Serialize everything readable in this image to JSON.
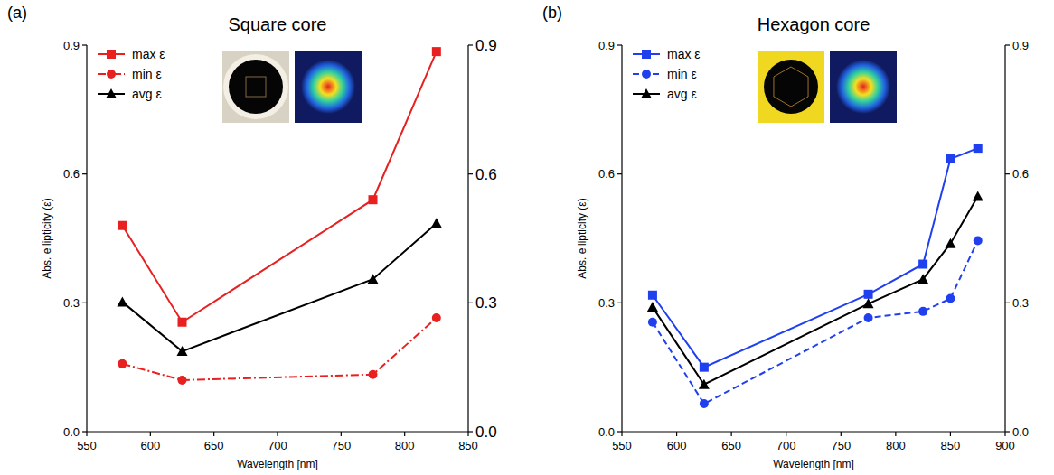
{
  "chart_data": [
    {
      "type": "line",
      "panel_label": "(a)",
      "title": "Square core",
      "x_label": "Wavelength [nm]",
      "y_label": "Abs. ellipticity (ε)",
      "x": [
        578,
        625,
        775,
        825
      ],
      "series": [
        {
          "name": "max ε",
          "color": "#e8201f",
          "marker": "square",
          "line_style": "solid",
          "values": [
            0.48,
            0.255,
            0.54,
            0.885
          ]
        },
        {
          "name": "min ε",
          "color": "#e8201f",
          "marker": "circle",
          "line_style": "dashdot",
          "values": [
            0.158,
            0.12,
            0.133,
            0.265
          ]
        },
        {
          "name": "avg ε",
          "color": "#000000",
          "marker": "triangle",
          "line_style": "solid",
          "values": [
            0.302,
            0.187,
            0.355,
            0.485
          ]
        }
      ],
      "xlim": [
        550,
        850
      ],
      "xticks": [
        550,
        600,
        650,
        700,
        750,
        800,
        850
      ],
      "ylim": [
        0,
        0.9
      ],
      "yticks": [
        {
          "value": 0,
          "label": "0.0"
        },
        0.3,
        0.6,
        0.9
      ],
      "y2lim": [
        0,
        0.9
      ],
      "y2ticks": [
        {
          "value": 0,
          "label": "0.0"
        },
        0.3,
        0.6,
        0.9
      ],
      "legend": "upper left"
    },
    {
      "type": "line",
      "panel_label": "(b)",
      "title": "Hexagon core",
      "x_label": "Wavelength [nm]",
      "y_label": "Abs. ellipticity (ε)",
      "x": [
        578,
        625,
        775,
        825,
        850,
        875
      ],
      "series": [
        {
          "name": "max ε",
          "color": "#2040f0",
          "marker": "square",
          "line_style": "solid",
          "values": [
            0.318,
            0.15,
            0.32,
            0.39,
            0.635,
            0.66
          ]
        },
        {
          "name": "min ε",
          "color": "#2040f0",
          "marker": "circle",
          "line_style": "dashed",
          "values": [
            0.255,
            0.065,
            0.265,
            0.28,
            0.31,
            0.445
          ]
        },
        {
          "name": "avg ε",
          "color": "#000000",
          "marker": "triangle",
          "line_style": "solid",
          "values": [
            0.29,
            0.11,
            0.298,
            0.355,
            0.438,
            0.548
          ]
        }
      ],
      "xlim": [
        550,
        900
      ],
      "xticks": [
        550,
        600,
        650,
        700,
        750,
        800,
        850,
        900
      ],
      "ylim": [
        0,
        0.9
      ],
      "yticks": [
        {
          "value": 0,
          "label": "0.0"
        },
        0.3,
        0.6,
        0.9
      ],
      "y2lim": [
        0,
        0.9
      ],
      "y2ticks": [
        {
          "value": 0,
          "label": "0.0"
        },
        0.3,
        0.6,
        0.9
      ],
      "legend": "upper left"
    }
  ]
}
